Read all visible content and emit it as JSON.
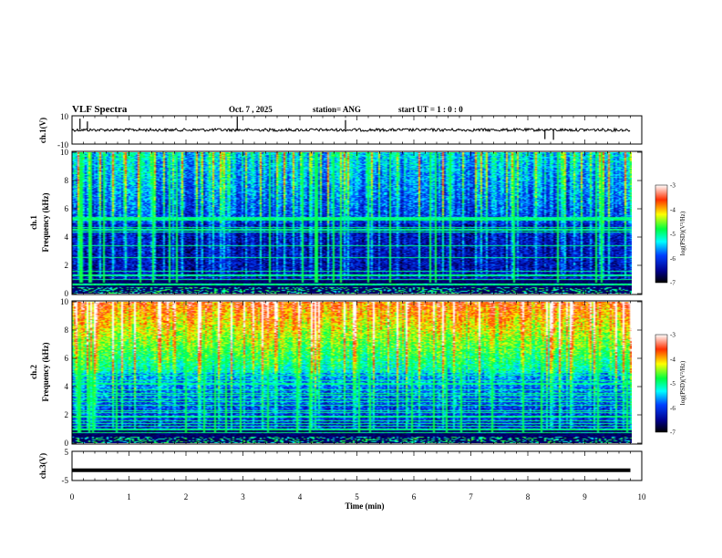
{
  "header": {
    "title": "VLF Spectra",
    "date": "Oct. 7 , 2025",
    "station": "station= ANG",
    "start": "start UT = 1 : 0 : 0"
  },
  "chart_data": [
    {
      "type": "line",
      "ylabel": "ch.1(V)",
      "ylim": [
        -10,
        10
      ],
      "yticks": [
        "10",
        "-10"
      ],
      "x_range": [
        0,
        10
      ],
      "baseline": 0,
      "spikes": [
        {
          "x": 0.14,
          "y": 8
        },
        {
          "x": 0.27,
          "y": 6
        },
        {
          "x": 2.9,
          "y": 9.5
        },
        {
          "x": 4.8,
          "y": 7
        },
        {
          "x": 8.3,
          "y": -6.5
        },
        {
          "x": 8.45,
          "y": -7
        }
      ]
    },
    {
      "type": "heatmap",
      "ylabel": "ch.1\nFrequency (kHz)",
      "ylabel_top": "ch.1",
      "ylabel_bottom": "Frequency (kHz)",
      "ylim": [
        0,
        10
      ],
      "yticks": [
        "0",
        "2",
        "4",
        "6",
        "8",
        "10"
      ],
      "x_range": [
        0,
        9.8
      ],
      "colorbar": {
        "range": [
          -7,
          -3
        ],
        "ticks": [
          "-3",
          "-4",
          "-5",
          "-6",
          "-7"
        ],
        "label": "log(PSD)(V²/Hz)"
      }
    },
    {
      "type": "heatmap",
      "ylabel": "ch.2\nFrequency (kHz)",
      "ylabel_top": "ch.2",
      "ylabel_bottom": "Frequency (kHz)",
      "ylim": [
        0,
        10
      ],
      "yticks": [
        "0",
        "2",
        "4",
        "6",
        "8",
        "10"
      ],
      "x_range": [
        0,
        9.8
      ],
      "colorbar": {
        "range": [
          -7,
          -3
        ],
        "ticks": [
          "-3",
          "-4",
          "-5",
          "-6",
          "-7"
        ],
        "label": "log(PSD)(V²/Hz)"
      }
    },
    {
      "type": "line",
      "ylabel": "ch.3(V)",
      "ylim": [
        -5,
        5
      ],
      "yticks": [
        "5",
        "-5"
      ],
      "x_range": [
        0,
        9.8
      ],
      "values_constant": -1.5,
      "xlabel": "Time (min)",
      "xticks": [
        "0",
        "1",
        "2",
        "3",
        "4",
        "5",
        "6",
        "7",
        "8",
        "9",
        "10"
      ]
    }
  ]
}
